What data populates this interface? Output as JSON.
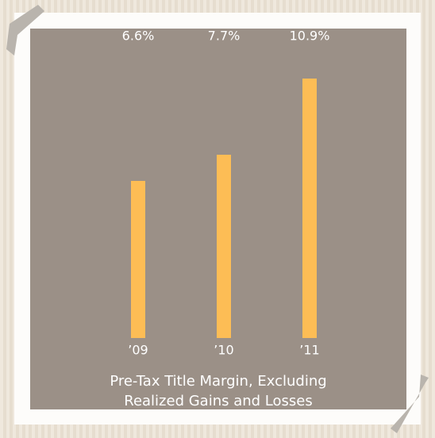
{
  "chart_data": {
    "type": "bar",
    "title": "Pre-Tax Title Margin, Excluding Realized Gains and Losses",
    "categories": [
      "’09",
      "’10",
      "’11"
    ],
    "values": [
      6.6,
      7.7,
      10.9
    ],
    "value_labels": [
      "6.6%",
      "7.7%",
      "10.9%"
    ],
    "color": "#fdbd55"
  }
}
